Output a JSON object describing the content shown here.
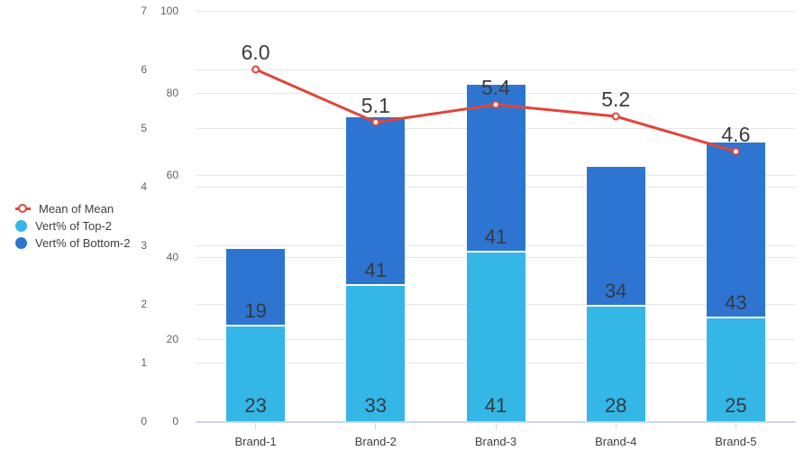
{
  "chart_data": {
    "type": "combo-stacked-bar-line",
    "background": "#ffffff",
    "stacked": true,
    "grid": true,
    "categories": [
      "Brand-1",
      "Brand-2",
      "Brand-3",
      "Brand-4",
      "Brand-5"
    ],
    "series": [
      {
        "name": "Vert% of Top-2",
        "type": "bar",
        "stack_order": 0,
        "axis": "percent",
        "color": "#34b6e7",
        "values": [
          23,
          33,
          41,
          28,
          25
        ]
      },
      {
        "name": "Vert% of Bottom-2",
        "type": "bar",
        "stack_order": 1,
        "axis": "percent",
        "color": "#2e75d2",
        "values": [
          19,
          41,
          41,
          34,
          43
        ]
      },
      {
        "name": "Mean of Mean",
        "type": "line",
        "axis": "mean",
        "color": "#e0453b",
        "values": [
          6.0,
          5.1,
          5.4,
          5.2,
          4.6
        ],
        "point_labels": [
          "6.0",
          "5.1",
          "5.4",
          "5.2",
          "4.6"
        ]
      }
    ],
    "axes": {
      "mean": {
        "position": "outer-left",
        "min": 0,
        "max": 7,
        "ticks": [
          0,
          1,
          2,
          3,
          4,
          5,
          6,
          7
        ]
      },
      "percent": {
        "position": "inner-left",
        "min": 0,
        "max": 100,
        "ticks": [
          0,
          20,
          40,
          60,
          80,
          100
        ]
      }
    },
    "legend": {
      "position": "middle-left",
      "items": [
        {
          "label": "Mean of Mean",
          "marker": "line-donut",
          "color": "#e0453b"
        },
        {
          "label": "Vert% of Top-2",
          "marker": "circle",
          "color": "#34b6e7"
        },
        {
          "label": "Vert% of Bottom-2",
          "marker": "circle",
          "color": "#2e75d2"
        }
      ]
    },
    "colors": {
      "gridline": "#e6e6e6",
      "baseline": "#ccd7e2",
      "axis_text": "#616161",
      "category_text": "#3c4043",
      "annotation_text": "#363a3d"
    }
  }
}
